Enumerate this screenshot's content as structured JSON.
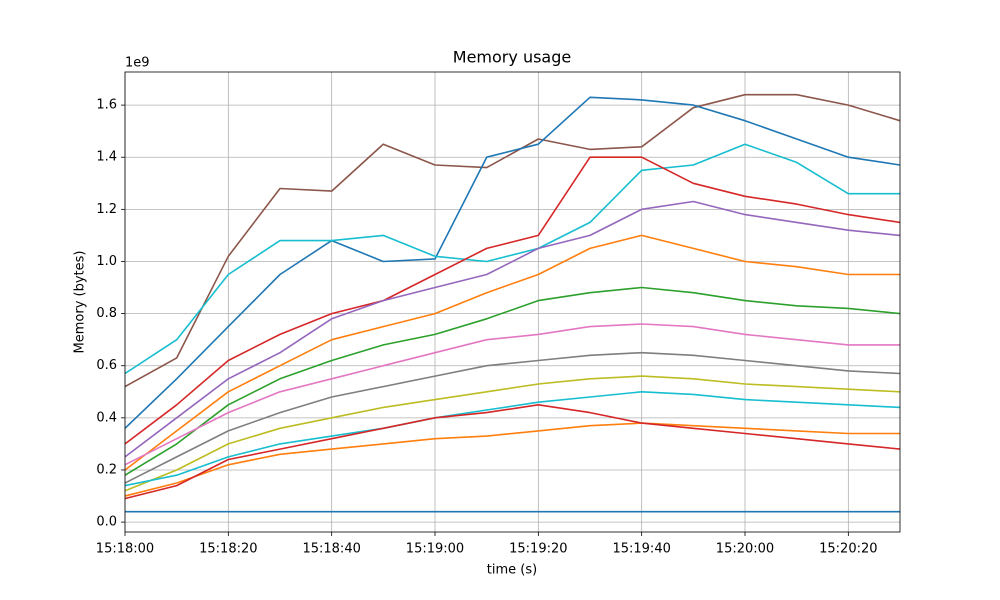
{
  "chart_data": {
    "type": "line",
    "title": "Memory usage",
    "x_label": "time (s)",
    "y_label": "Memory (bytes)",
    "y_offset_label": "1e9",
    "grid": true,
    "x": [
      "15:18:00",
      "15:18:10",
      "15:18:20",
      "15:18:30",
      "15:18:40",
      "15:18:50",
      "15:19:00",
      "15:19:10",
      "15:19:20",
      "15:19:30",
      "15:19:40",
      "15:19:50",
      "15:20:00",
      "15:20:10",
      "15:20:20",
      "15:20:30"
    ],
    "xlim": [
      "15:18:00",
      "15:20:30"
    ],
    "xticks": [
      "15:18:00",
      "15:18:20",
      "15:18:40",
      "15:19:00",
      "15:19:20",
      "15:19:40",
      "15:20:00",
      "15:20:20"
    ],
    "ylim": [
      -38000000.0,
      1727000000.0
    ],
    "yticks": [
      {
        "value": 0,
        "label": "0.0"
      },
      {
        "value": 200000000.0,
        "label": "0.2"
      },
      {
        "value": 400000000.0,
        "label": "0.4"
      },
      {
        "value": 600000000.0,
        "label": "0.6"
      },
      {
        "value": 800000000.0,
        "label": "0.8"
      },
      {
        "value": 1000000000.0,
        "label": "1.0"
      },
      {
        "value": 1200000000.0,
        "label": "1.2"
      },
      {
        "value": 1400000000.0,
        "label": "1.4"
      },
      {
        "value": 1600000000.0,
        "label": "1.6"
      }
    ],
    "series": [
      {
        "color": "#8c564b",
        "values": [
          520000000.0,
          630000000.0,
          1020000000.0,
          1280000000.0,
          1270000000.0,
          1450000000.0,
          1370000000.0,
          1360000000.0,
          1470000000.0,
          1430000000.0,
          1440000000.0,
          1590000000.0,
          1640000000.0,
          1640000000.0,
          1600000000.0,
          1540000000.0
        ]
      },
      {
        "color": "#1f77b4",
        "values": [
          360000000.0,
          550000000.0,
          750000000.0,
          950000000.0,
          1080000000.0,
          1000000000.0,
          1010000000.0,
          1400000000.0,
          1450000000.0,
          1630000000.0,
          1620000000.0,
          1600000000.0,
          1540000000.0,
          1470000000.0,
          1400000000.0,
          1370000000.0
        ]
      },
      {
        "color": "#17becf",
        "values": [
          570000000.0,
          700000000.0,
          950000000.0,
          1080000000.0,
          1080000000.0,
          1100000000.0,
          1020000000.0,
          1000000000.0,
          1050000000.0,
          1150000000.0,
          1350000000.0,
          1370000000.0,
          1450000000.0,
          1380000000.0,
          1260000000.0,
          1260000000.0
        ]
      },
      {
        "color": "#d62728",
        "values": [
          300000000.0,
          450000000.0,
          620000000.0,
          720000000.0,
          800000000.0,
          850000000.0,
          950000000.0,
          1050000000.0,
          1100000000.0,
          1400000000.0,
          1400000000.0,
          1300000000.0,
          1250000000.0,
          1220000000.0,
          1180000000.0,
          1150000000.0
        ]
      },
      {
        "color": "#9467bd",
        "values": [
          250000000.0,
          400000000.0,
          550000000.0,
          650000000.0,
          780000000.0,
          850000000.0,
          900000000.0,
          950000000.0,
          1050000000.0,
          1100000000.0,
          1200000000.0,
          1230000000.0,
          1180000000.0,
          1150000000.0,
          1120000000.0,
          1100000000.0
        ]
      },
      {
        "color": "#ff7f0e",
        "values": [
          200000000.0,
          350000000.0,
          500000000.0,
          600000000.0,
          700000000.0,
          750000000.0,
          800000000.0,
          880000000.0,
          950000000.0,
          1050000000.0,
          1100000000.0,
          1050000000.0,
          1000000000.0,
          980000000.0,
          950000000.0,
          950000000.0
        ]
      },
      {
        "color": "#2ca02c",
        "values": [
          180000000.0,
          300000000.0,
          450000000.0,
          550000000.0,
          620000000.0,
          680000000.0,
          720000000.0,
          780000000.0,
          850000000.0,
          880000000.0,
          900000000.0,
          880000000.0,
          850000000.0,
          830000000.0,
          820000000.0,
          800000000.0
        ]
      },
      {
        "color": "#e377c2",
        "values": [
          220000000.0,
          320000000.0,
          420000000.0,
          500000000.0,
          550000000.0,
          600000000.0,
          650000000.0,
          700000000.0,
          720000000.0,
          750000000.0,
          760000000.0,
          750000000.0,
          720000000.0,
          700000000.0,
          680000000.0,
          680000000.0
        ]
      },
      {
        "color": "#7f7f7f",
        "values": [
          150000000.0,
          250000000.0,
          350000000.0,
          420000000.0,
          480000000.0,
          520000000.0,
          560000000.0,
          600000000.0,
          620000000.0,
          640000000.0,
          650000000.0,
          640000000.0,
          620000000.0,
          600000000.0,
          580000000.0,
          570000000.0
        ]
      },
      {
        "color": "#bcbd22",
        "values": [
          120000000.0,
          200000000.0,
          300000000.0,
          360000000.0,
          400000000.0,
          440000000.0,
          470000000.0,
          500000000.0,
          530000000.0,
          550000000.0,
          560000000.0,
          550000000.0,
          530000000.0,
          520000000.0,
          510000000.0,
          500000000.0
        ]
      },
      {
        "color": "#17becf",
        "values": [
          140000000.0,
          180000000.0,
          250000000.0,
          300000000.0,
          330000000.0,
          360000000.0,
          400000000.0,
          430000000.0,
          460000000.0,
          480000000.0,
          500000000.0,
          490000000.0,
          470000000.0,
          460000000.0,
          450000000.0,
          440000000.0
        ]
      },
      {
        "color": "#ff7f0e",
        "values": [
          100000000.0,
          150000000.0,
          220000000.0,
          260000000.0,
          280000000.0,
          300000000.0,
          320000000.0,
          330000000.0,
          350000000.0,
          370000000.0,
          380000000.0,
          370000000.0,
          360000000.0,
          350000000.0,
          340000000.0,
          340000000.0
        ]
      },
      {
        "color": "#d62728",
        "values": [
          90000000.0,
          140000000.0,
          240000000.0,
          280000000.0,
          320000000.0,
          360000000.0,
          400000000.0,
          420000000.0,
          450000000.0,
          420000000.0,
          380000000.0,
          360000000.0,
          340000000.0,
          320000000.0,
          300000000.0,
          280000000.0
        ]
      },
      {
        "color": "#1f77b4",
        "values": [
          40000000.0,
          40000000.0,
          40000000.0,
          40000000.0,
          40000000.0,
          40000000.0,
          40000000.0,
          40000000.0,
          40000000.0,
          40000000.0,
          40000000.0,
          40000000.0,
          40000000.0,
          40000000.0,
          40000000.0,
          40000000.0
        ]
      }
    ]
  }
}
